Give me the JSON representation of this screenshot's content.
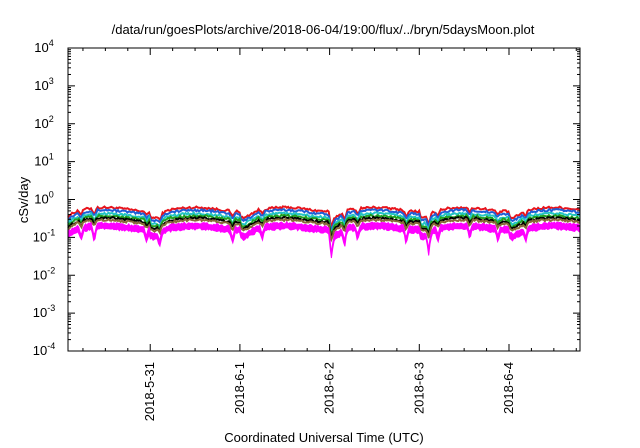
{
  "chart_data": {
    "type": "line",
    "title": "/data/run/goesPlots/archive/2018-06-04/19:00/flux/../bryn/5daysMoon.plot",
    "xlabel": "Coordinated Universal Time (UTC)",
    "ylabel": "cSv/day",
    "yscale": "log",
    "ylim": [
      0.0001,
      10000
    ],
    "xlim": [
      "2018-05-30 02:00",
      "2018-06-04 19:00"
    ],
    "y_ticks": [
      {
        "base": "10",
        "exp": "-4"
      },
      {
        "base": "10",
        "exp": "-3"
      },
      {
        "base": "10",
        "exp": "-2"
      },
      {
        "base": "10",
        "exp": "-1"
      },
      {
        "base": "10",
        "exp": "0"
      },
      {
        "base": "10",
        "exp": "1"
      },
      {
        "base": "10",
        "exp": "2"
      },
      {
        "base": "10",
        "exp": "3"
      },
      {
        "base": "10",
        "exp": "4"
      }
    ],
    "x_ticks": [
      "2018-5-31",
      "2018-6-1",
      "2018-6-2",
      "2018-6-3",
      "2018-6-4"
    ],
    "grid": false,
    "legend": "none",
    "series": [
      {
        "color": "#e8141c",
        "level": 0.55,
        "dips": [
          0.75,
          0.72,
          0.78,
          0.7
        ]
      },
      {
        "color": "#1f5fd6",
        "level": 0.47,
        "dips": [
          0.7,
          0.68,
          0.72,
          0.66
        ]
      },
      {
        "color": "#22c4c4",
        "level": 0.38,
        "dips": [
          0.72,
          0.7,
          0.74,
          0.7
        ]
      },
      {
        "color": "#20a020",
        "level": 0.33,
        "dips": [
          0.72,
          0.7,
          0.74,
          0.7
        ]
      },
      {
        "color": "#000000",
        "level": 0.29,
        "dips": [
          0.7,
          0.7,
          0.72,
          0.68
        ]
      },
      {
        "color": "#8a6a3a",
        "level": 0.26,
        "dips": [
          0.7,
          0.7,
          0.72,
          0.68
        ]
      },
      {
        "color": "#ff00ff",
        "level": 0.215,
        "dips": [
          0.4,
          0.35,
          0.45,
          0.35
        ]
      }
    ],
    "fill_band": {
      "color": "#ff00ff",
      "lower_factor": 0.82
    },
    "dip_events": [
      {
        "t": "2018-05-30 05:30",
        "depth": 0.55
      },
      {
        "t": "2018-05-30 09:00",
        "depth": 0.5
      },
      {
        "t": "2018-05-30 23:00",
        "depth": 0.6
      },
      {
        "t": "2018-05-31 02:30",
        "depth": 0.55
      },
      {
        "t": "2018-05-31 22:00",
        "depth": 0.5
      },
      {
        "t": "2018-06-01 06:00",
        "depth": 0.6
      },
      {
        "t": "2018-06-02 00:30",
        "depth": 0.3
      },
      {
        "t": "2018-06-02 04:00",
        "depth": 0.45
      },
      {
        "t": "2018-06-02 07:30",
        "depth": 0.55
      },
      {
        "t": "2018-06-02 20:30",
        "depth": 0.5
      },
      {
        "t": "2018-06-03 02:30",
        "depth": 0.32
      },
      {
        "t": "2018-06-03 05:00",
        "depth": 0.55
      },
      {
        "t": "2018-06-03 13:30",
        "depth": 0.55
      },
      {
        "t": "2018-06-03 21:00",
        "depth": 0.6
      },
      {
        "t": "2018-06-04 04:30",
        "depth": 0.55
      }
    ]
  }
}
